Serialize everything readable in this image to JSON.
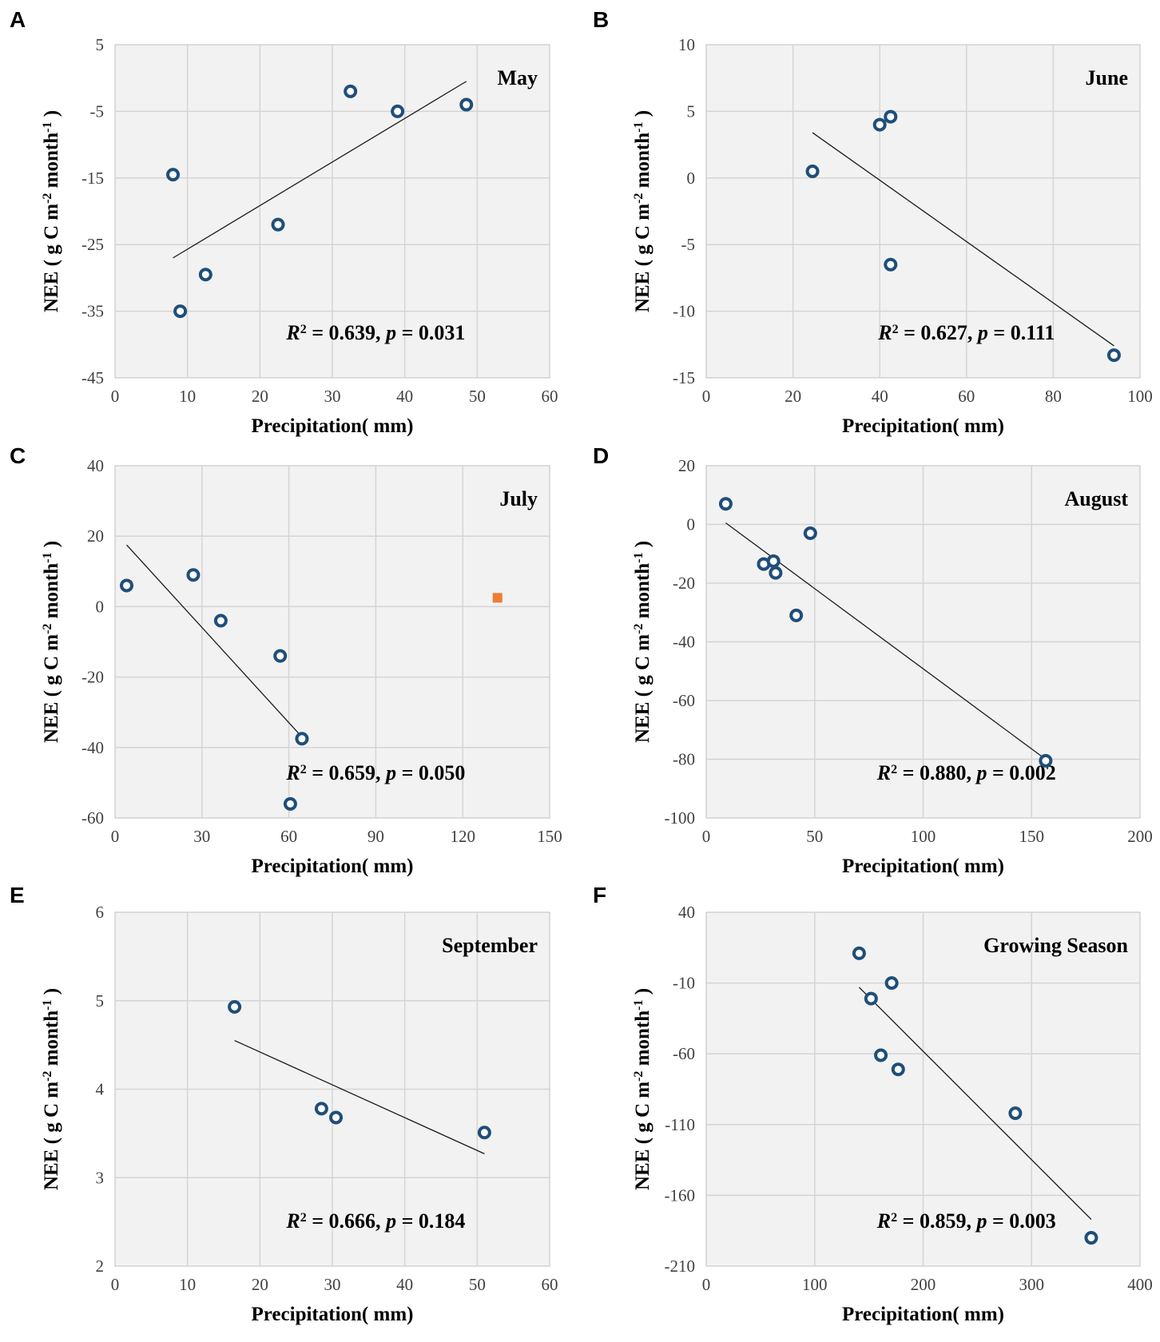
{
  "figure": {
    "colors": {
      "point": "#1f4e79",
      "outlier": "#ed7d31",
      "trend": "#1a1a1a",
      "plot_bg": "#f2f2f2",
      "grid": "#d4d4d4"
    }
  },
  "chart_data": [
    {
      "panel": "A",
      "type": "scatter",
      "title": "May",
      "xlabel": "Precipitation( mm)",
      "ylabel": "NEE ( g C  m-2 month-1 )",
      "xlim": [
        0,
        60
      ],
      "ylim": [
        -45,
        5
      ],
      "xticks": [
        0,
        10,
        20,
        30,
        40,
        50,
        60
      ],
      "yticks": [
        -45,
        -35,
        -25,
        -15,
        -5,
        5
      ],
      "points": [
        {
          "x": 8,
          "y": -14.5
        },
        {
          "x": 9,
          "y": -35
        },
        {
          "x": 12.5,
          "y": -29.5
        },
        {
          "x": 22.5,
          "y": -22
        },
        {
          "x": 32.5,
          "y": -2
        },
        {
          "x": 39,
          "y": -5
        },
        {
          "x": 48.5,
          "y": -4
        }
      ],
      "outliers": [],
      "trendline": {
        "x1": 8,
        "y1": -27,
        "x2": 48.5,
        "y2": -0.5
      },
      "stats": {
        "r2": "0.639",
        "p": "0.031"
      }
    },
    {
      "panel": "B",
      "type": "scatter",
      "title": "June",
      "xlabel": "Precipitation( mm)",
      "ylabel": "NEE ( g C  m-2 month-1 )",
      "xlim": [
        0,
        100
      ],
      "ylim": [
        -15,
        10
      ],
      "xticks": [
        0,
        20,
        40,
        60,
        80,
        100
      ],
      "yticks": [
        -15,
        -10,
        -5,
        0,
        5,
        10
      ],
      "points": [
        {
          "x": 24.5,
          "y": 0.5
        },
        {
          "x": 40,
          "y": 4
        },
        {
          "x": 42.5,
          "y": 4.6
        },
        {
          "x": 42.5,
          "y": -6.5
        },
        {
          "x": 94,
          "y": -13.3
        }
      ],
      "outliers": [],
      "trendline": {
        "x1": 24.5,
        "y1": 3.4,
        "x2": 94,
        "y2": -12.6
      },
      "stats": {
        "r2": "0.627",
        "p": "0.111"
      }
    },
    {
      "panel": "C",
      "type": "scatter",
      "title": "July",
      "xlabel": "Precipitation( mm)",
      "ylabel": "NEE ( g C  m-2 month-1 )",
      "xlim": [
        0,
        150
      ],
      "ylim": [
        -60,
        40
      ],
      "xticks": [
        0,
        30,
        60,
        90,
        120,
        150
      ],
      "yticks": [
        -60,
        -40,
        -20,
        0,
        20,
        40
      ],
      "points": [
        {
          "x": 4,
          "y": 6
        },
        {
          "x": 27,
          "y": 9
        },
        {
          "x": 36.5,
          "y": -4
        },
        {
          "x": 57,
          "y": -14
        },
        {
          "x": 64.5,
          "y": -37.5
        },
        {
          "x": 60.5,
          "y": -56
        }
      ],
      "outliers": [
        {
          "x": 132,
          "y": 2.5
        }
      ],
      "trendline": {
        "x1": 4,
        "y1": 17.5,
        "x2": 64.5,
        "y2": -37
      },
      "stats": {
        "r2": "0.659",
        "p": "0.050"
      }
    },
    {
      "panel": "D",
      "type": "scatter",
      "title": "August",
      "xlabel": "Precipitation( mm)",
      "ylabel": "NEE ( g C  m-2 month-1 )",
      "xlim": [
        0,
        200
      ],
      "ylim": [
        -100,
        20
      ],
      "xticks": [
        0,
        50,
        100,
        150,
        200
      ],
      "yticks": [
        -100,
        -80,
        -60,
        -40,
        -20,
        0,
        20
      ],
      "points": [
        {
          "x": 9,
          "y": 7
        },
        {
          "x": 26.5,
          "y": -13.5
        },
        {
          "x": 31,
          "y": -12.5
        },
        {
          "x": 32,
          "y": -16.5
        },
        {
          "x": 48,
          "y": -3
        },
        {
          "x": 41.5,
          "y": -31
        },
        {
          "x": 156.5,
          "y": -80.5
        }
      ],
      "outliers": [],
      "trendline": {
        "x1": 9,
        "y1": 0.5,
        "x2": 156.5,
        "y2": -80
      },
      "stats": {
        "r2": "0.880",
        "p": "0.002"
      }
    },
    {
      "panel": "E",
      "type": "scatter",
      "title": "September",
      "xlabel": "Precipitation( mm)",
      "ylabel": "NEE ( g C  m-2 month-1 )",
      "xlim": [
        0,
        60
      ],
      "ylim": [
        2,
        6
      ],
      "xticks": [
        0,
        10,
        20,
        30,
        40,
        50,
        60
      ],
      "yticks": [
        2,
        3,
        4,
        5,
        6
      ],
      "points": [
        {
          "x": 16.5,
          "y": 4.93
        },
        {
          "x": 28.5,
          "y": 3.78
        },
        {
          "x": 30.5,
          "y": 3.68
        },
        {
          "x": 51,
          "y": 3.51
        }
      ],
      "outliers": [],
      "trendline": {
        "x1": 16.5,
        "y1": 4.55,
        "x2": 51,
        "y2": 3.27
      },
      "stats": {
        "r2": "0.666",
        "p": "0.184"
      }
    },
    {
      "panel": "F",
      "type": "scatter",
      "title": "Growing Season",
      "xlabel": "Precipitation( mm)",
      "ylabel": "NEE ( g C  m-2 month-1 )",
      "xlim": [
        0,
        400
      ],
      "ylim": [
        -210,
        40
      ],
      "xticks": [
        0,
        100,
        200,
        300,
        400
      ],
      "yticks": [
        -210,
        -160,
        -110,
        -60,
        -10,
        40
      ],
      "points": [
        {
          "x": 141,
          "y": 11
        },
        {
          "x": 171,
          "y": -10
        },
        {
          "x": 152,
          "y": -21
        },
        {
          "x": 161,
          "y": -61
        },
        {
          "x": 177,
          "y": -71
        },
        {
          "x": 285,
          "y": -102
        },
        {
          "x": 355,
          "y": -190
        }
      ],
      "outliers": [],
      "trendline": {
        "x1": 141,
        "y1": -13,
        "x2": 355,
        "y2": -177
      },
      "stats": {
        "r2": "0.859",
        "p": "0.003"
      }
    }
  ]
}
